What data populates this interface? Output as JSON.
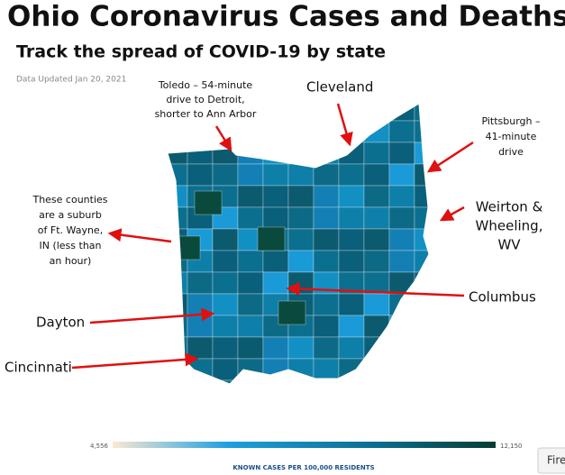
{
  "header": {
    "title": "Ohio Coronavirus Cases and Deaths",
    "subtitle": "Track the spread of COVID-19 by state",
    "updated": "Data Updated Jan 20, 2021"
  },
  "annotations": {
    "toledo": [
      "Toledo – 54-minute",
      "drive to Detroit,",
      "shorter to Ann Arbor"
    ],
    "cleveland": "Cleveland",
    "pittsburgh": [
      "Pittsburgh –",
      "41-minute",
      "drive"
    ],
    "weirton": [
      "Weirton &",
      "Wheeling,",
      "WV"
    ],
    "ft_wayne": [
      "These counties",
      "are a suburb",
      "of Ft. Wayne,",
      "IN (less than",
      "an hour)"
    ],
    "columbus": "Columbus",
    "dayton": "Dayton",
    "cincinnati": "Cincinnati"
  },
  "legend": {
    "min": "4,556",
    "max": "12,150",
    "label": "KNOWN CASES PER 100,000 RESIDENTS"
  },
  "button": "Fire"
}
